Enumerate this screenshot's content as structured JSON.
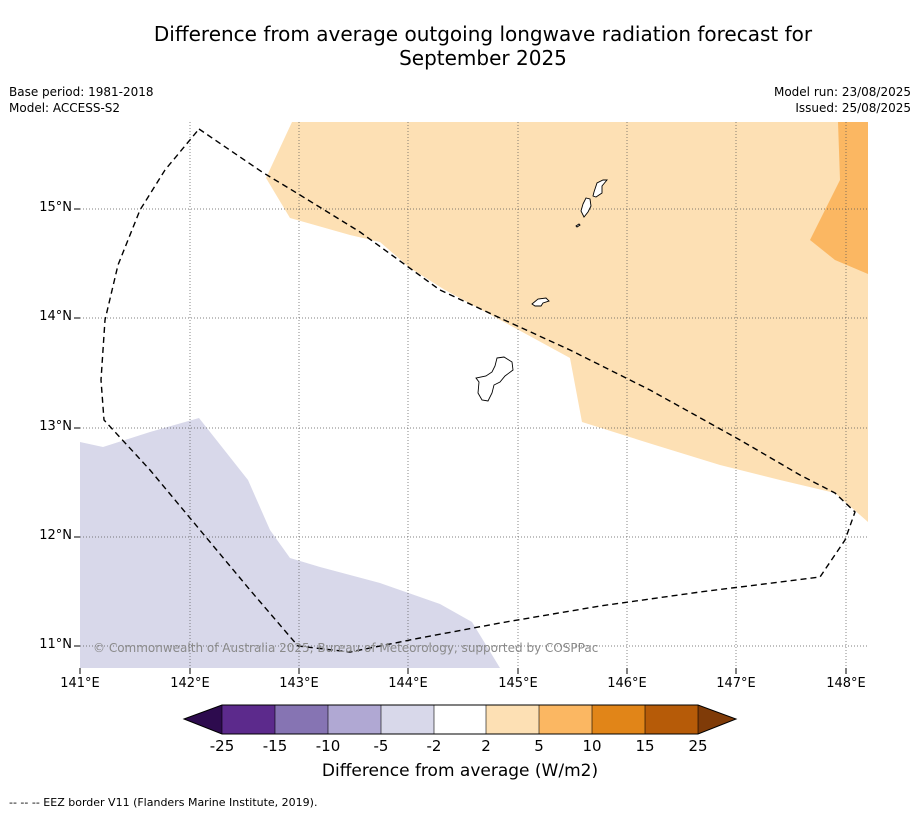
{
  "title_line1": "Difference from average outgoing longwave radiation forecast for",
  "title_line2": "September 2025",
  "base_period": "Base period: 1981-2018",
  "model": "Model: ACCESS-S2",
  "model_run": "Model run: 23/08/2025",
  "issued": "Issued: 25/08/2025",
  "copyright": "© Commonwealth of Australia 2025, Bureau of Meteorology, supported by COSPPac",
  "lat_labels": [
    "15°N",
    "14°N",
    "13°N",
    "12°N",
    "11°N"
  ],
  "lon_labels": [
    "141°E",
    "142°E",
    "143°E",
    "144°E",
    "145°E",
    "146°E",
    "147°E",
    "148°E"
  ],
  "colorbar": {
    "title": "Difference from average (W/m2)",
    "ticks": [
      "-25",
      "-15",
      "-10",
      "-5",
      "-2",
      "2",
      "5",
      "10",
      "15",
      "25"
    ],
    "colors": {
      "under": "#2d0b4e",
      "-25_-15": "#5c2a8c",
      "-15_-10": "#8674b3",
      "-10_-5": "#b0a8d3",
      "-5_-2": "#d8d8ea",
      "-2_2": "#ffffff",
      "2_5": "#fde0b4",
      "5_10": "#fbb762",
      "10_15": "#e18518",
      "15_25": "#b65b08",
      "over": "#7f3b08"
    }
  },
  "footnote": "--  --  -- EEZ border V11 (Flanders Marine Institute, 2019)."
}
